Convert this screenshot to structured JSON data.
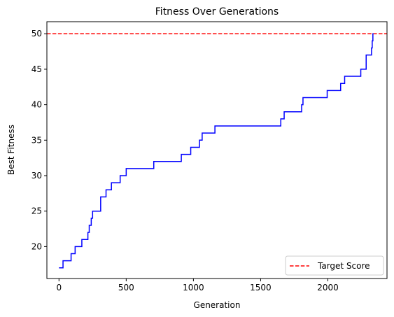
{
  "chart_data": {
    "type": "line",
    "title": "Fitness Over Generations",
    "xlabel": "Generation",
    "ylabel": "Best Fitness",
    "xlim": [
      -90,
      2440
    ],
    "ylim": [
      15.5,
      51.7
    ],
    "xticks": [
      0,
      500,
      1000,
      1500,
      2000
    ],
    "yticks": [
      20,
      25,
      30,
      35,
      40,
      45,
      50
    ],
    "grid": false,
    "legend_position": "lower-right",
    "series": [
      {
        "name": "",
        "color": "#0000ff",
        "style": "step",
        "points": [
          [
            0,
            17
          ],
          [
            30,
            17
          ],
          [
            30,
            18
          ],
          [
            90,
            18
          ],
          [
            90,
            19
          ],
          [
            120,
            19
          ],
          [
            120,
            20
          ],
          [
            170,
            20
          ],
          [
            170,
            21
          ],
          [
            215,
            21
          ],
          [
            215,
            22
          ],
          [
            225,
            22
          ],
          [
            225,
            23
          ],
          [
            240,
            23
          ],
          [
            240,
            24
          ],
          [
            250,
            24
          ],
          [
            250,
            25
          ],
          [
            310,
            25
          ],
          [
            310,
            27
          ],
          [
            350,
            27
          ],
          [
            350,
            28
          ],
          [
            390,
            28
          ],
          [
            390,
            29
          ],
          [
            455,
            29
          ],
          [
            455,
            30
          ],
          [
            500,
            30
          ],
          [
            500,
            31
          ],
          [
            705,
            31
          ],
          [
            705,
            32
          ],
          [
            910,
            32
          ],
          [
            910,
            33
          ],
          [
            980,
            33
          ],
          [
            980,
            34
          ],
          [
            1045,
            34
          ],
          [
            1045,
            35
          ],
          [
            1065,
            35
          ],
          [
            1065,
            36
          ],
          [
            1160,
            36
          ],
          [
            1160,
            37
          ],
          [
            1650,
            37
          ],
          [
            1650,
            38
          ],
          [
            1675,
            38
          ],
          [
            1675,
            39
          ],
          [
            1805,
            39
          ],
          [
            1805,
            40
          ],
          [
            1815,
            40
          ],
          [
            1815,
            41
          ],
          [
            1995,
            41
          ],
          [
            1995,
            42
          ],
          [
            2095,
            42
          ],
          [
            2095,
            43
          ],
          [
            2125,
            43
          ],
          [
            2125,
            44
          ],
          [
            2245,
            44
          ],
          [
            2245,
            45
          ],
          [
            2285,
            45
          ],
          [
            2285,
            47
          ],
          [
            2325,
            47
          ],
          [
            2325,
            48
          ],
          [
            2330,
            48
          ],
          [
            2330,
            49
          ],
          [
            2335,
            49
          ],
          [
            2335,
            50
          ],
          [
            2340,
            50
          ]
        ]
      }
    ],
    "reference_lines": [
      {
        "name": "Target Score",
        "orientation": "horizontal",
        "y": 50,
        "color": "#ff0000",
        "style": "dashed"
      }
    ]
  }
}
